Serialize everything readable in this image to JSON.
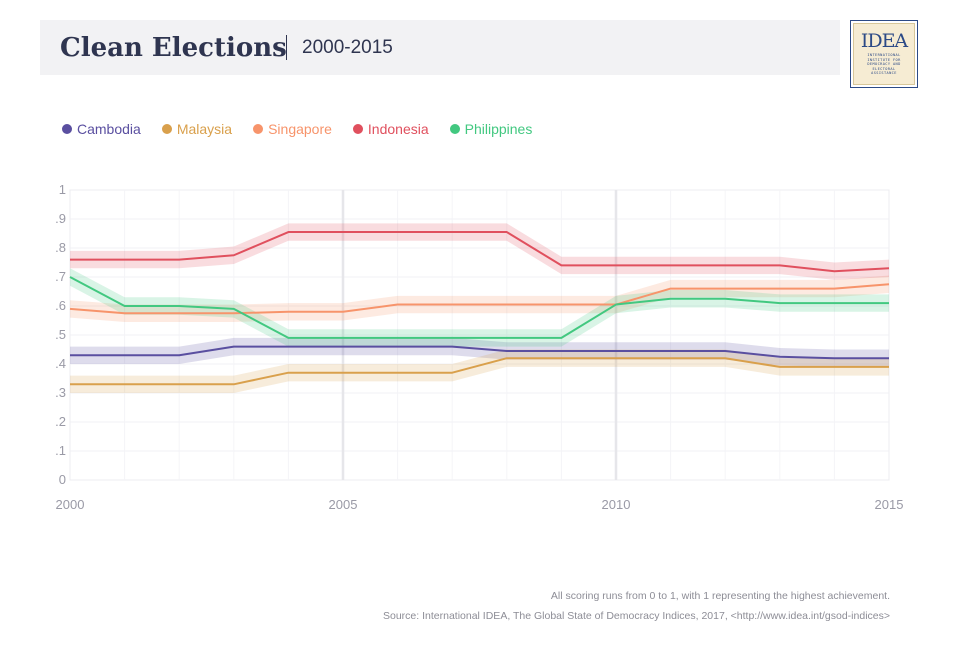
{
  "header": {
    "title": "Clean Elections",
    "subtitle": "2000-2015"
  },
  "logo": {
    "main_text": "IDEA",
    "sub_text": "INTERNATIONAL INSTITUTE FOR DEMOCRACY AND ELECTORAL ASSISTANCE"
  },
  "footer": {
    "note": "All scoring runs from 0 to 1, with 1 representing the highest achievement.",
    "source": "Source: International IDEA, The Global State of Democracy Indices, 2017, <http://www.idea.int/gsod-indices>"
  },
  "chart_data": {
    "type": "line",
    "title": "Clean Elections",
    "subtitle": "2000-2015",
    "xlabel": "",
    "ylabel": "",
    "x": [
      2000,
      2001,
      2002,
      2003,
      2004,
      2005,
      2006,
      2007,
      2008,
      2009,
      2010,
      2011,
      2012,
      2013,
      2014,
      2015
    ],
    "xlim": [
      2000,
      2015
    ],
    "ylim": [
      0,
      1
    ],
    "x_ticks": [
      2000,
      2005,
      2010,
      2015
    ],
    "x_tick_labels": [
      "2000",
      "2005",
      "2010",
      "2015"
    ],
    "y_ticks": [
      0,
      0.1,
      0.2,
      0.3,
      0.4,
      0.5,
      0.6,
      0.7,
      0.8,
      0.9,
      1
    ],
    "y_tick_labels": [
      "0",
      ".1",
      ".2",
      ".3",
      ".4",
      ".5",
      ".6",
      ".7",
      ".8",
      ".9",
      "1"
    ],
    "grid": true,
    "legend_position": "top-left",
    "band_halfwidth": 0.03,
    "series": [
      {
        "name": "Cambodia",
        "color": "#5a4fa0",
        "values": [
          0.43,
          0.43,
          0.43,
          0.46,
          0.46,
          0.46,
          0.46,
          0.46,
          0.445,
          0.445,
          0.445,
          0.445,
          0.445,
          0.425,
          0.42,
          0.42
        ]
      },
      {
        "name": "Malaysia",
        "color": "#d9a04c",
        "values": [
          0.33,
          0.33,
          0.33,
          0.33,
          0.37,
          0.37,
          0.37,
          0.37,
          0.42,
          0.42,
          0.42,
          0.42,
          0.42,
          0.39,
          0.39,
          0.39
        ]
      },
      {
        "name": "Singapore",
        "color": "#f7946b",
        "values": [
          0.59,
          0.575,
          0.575,
          0.575,
          0.58,
          0.58,
          0.605,
          0.605,
          0.605,
          0.605,
          0.605,
          0.66,
          0.66,
          0.66,
          0.66,
          0.675
        ]
      },
      {
        "name": "Indonesia",
        "color": "#e0505e",
        "values": [
          0.76,
          0.76,
          0.76,
          0.775,
          0.855,
          0.855,
          0.855,
          0.855,
          0.855,
          0.74,
          0.74,
          0.74,
          0.74,
          0.74,
          0.72,
          0.73
        ]
      },
      {
        "name": "Philippines",
        "color": "#42c880",
        "values": [
          0.7,
          0.6,
          0.6,
          0.59,
          0.49,
          0.49,
          0.49,
          0.49,
          0.49,
          0.49,
          0.605,
          0.625,
          0.625,
          0.61,
          0.61,
          0.61
        ]
      }
    ]
  }
}
